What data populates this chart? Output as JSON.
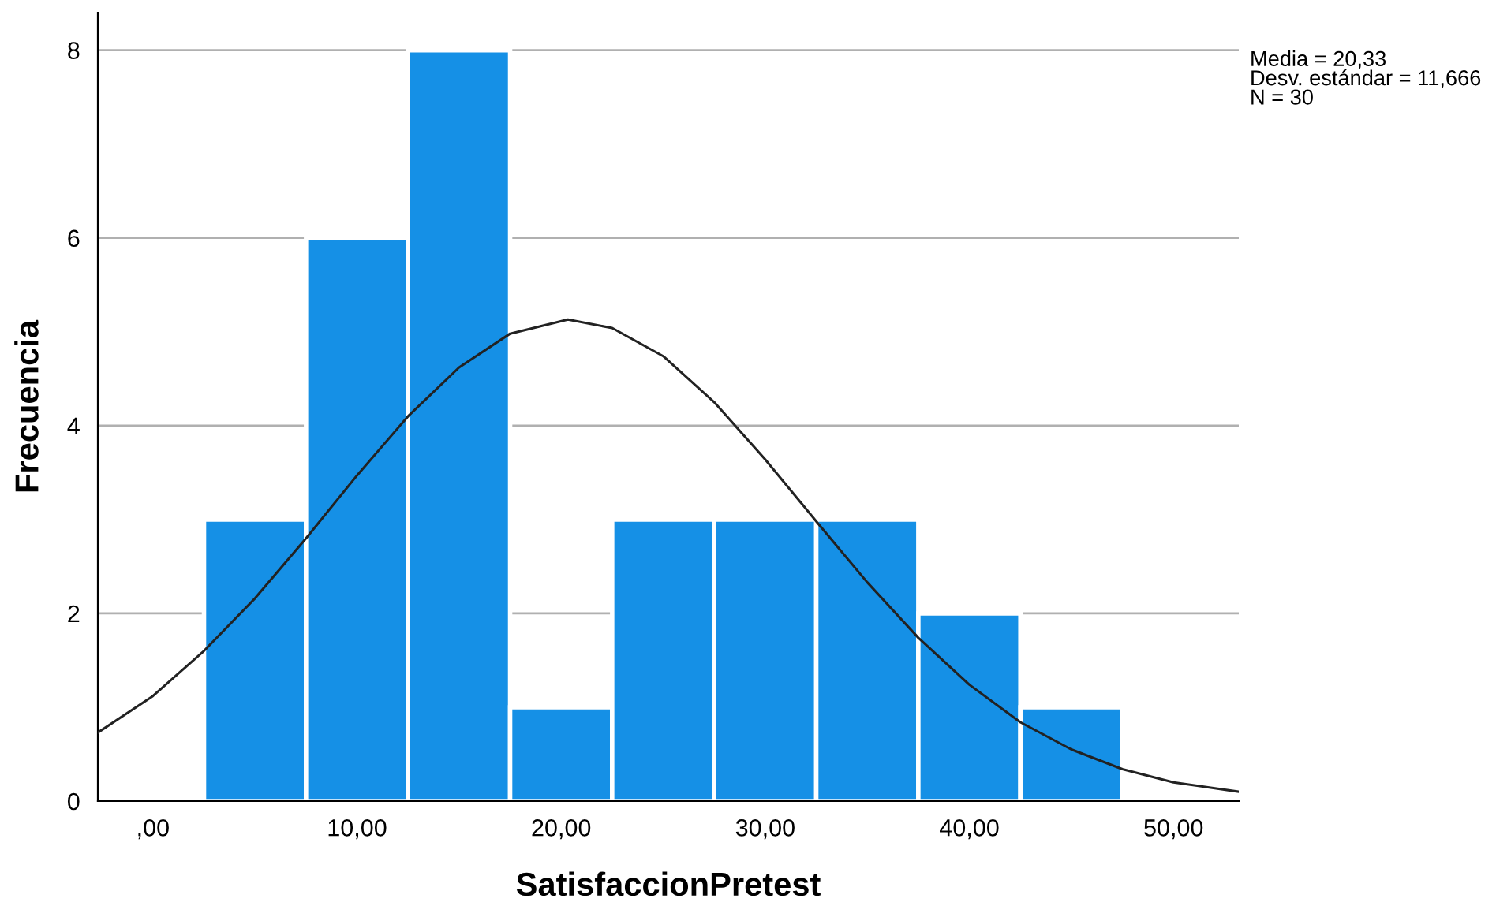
{
  "chart_data": {
    "type": "histogram",
    "xlabel": "SatisfaccionPretest",
    "ylabel": "Frecuencia",
    "bins": [
      2.5,
      7.5,
      12.5,
      17.5,
      22.5,
      27.5,
      32.5,
      37.5,
      42.5,
      47.5
    ],
    "values": [
      3,
      6,
      8,
      1,
      3,
      3,
      3,
      2,
      1
    ],
    "color": "#1590e6",
    "series": [
      {
        "type": "line",
        "color": "#222222",
        "x": [
          -2.7,
          0,
          2.5,
          5,
          7.5,
          10,
          12.5,
          15,
          17.5,
          20.33,
          22.5,
          25,
          27.5,
          30,
          32.5,
          35,
          37.5,
          40,
          42.5,
          45,
          47.5,
          50,
          53.2
        ],
        "values": [
          0.73,
          1.12,
          1.6,
          2.16,
          2.8,
          3.47,
          4.1,
          4.62,
          4.98,
          5.13,
          5.04,
          4.74,
          4.25,
          3.64,
          2.98,
          2.33,
          1.74,
          1.24,
          0.84,
          0.55,
          0.34,
          0.2,
          0.1
        ]
      }
    ],
    "xlim": [
      -2.7,
      53.2
    ],
    "ylim": [
      0,
      8.4
    ],
    "xticks": [
      {
        "value": 0,
        "label": ",00"
      },
      {
        "value": 10,
        "label": "10,00"
      },
      {
        "value": 20,
        "label": "20,00"
      },
      {
        "value": 30,
        "label": "30,00"
      },
      {
        "value": 40,
        "label": "40,00"
      },
      {
        "value": 50,
        "label": "50,00"
      }
    ],
    "yticks": [
      0,
      2,
      4,
      6,
      8
    ],
    "grid": "y",
    "annotations": [
      "Media = 20,33",
      "Desv. estándar = 11,666",
      "N = 30"
    ]
  }
}
